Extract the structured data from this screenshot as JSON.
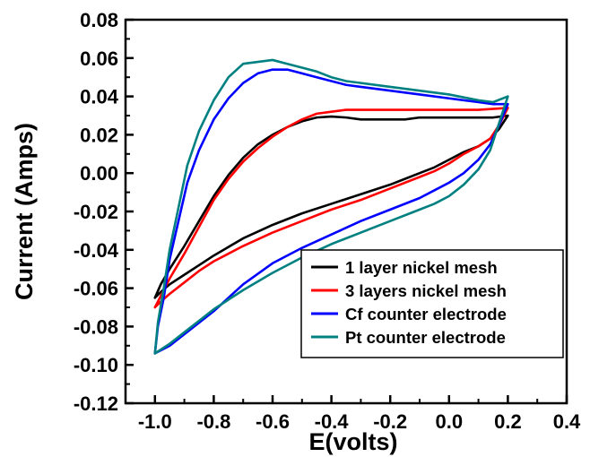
{
  "chart_data": {
    "type": "line",
    "xlabel": "E(volts)",
    "ylabel": "Current (Amps)",
    "xlim": [
      -1.1,
      0.4
    ],
    "ylim": [
      -0.12,
      0.08
    ],
    "x_ticks": [
      "-1.0",
      "-0.8",
      "-0.6",
      "-0.4",
      "-0.2",
      "0.0",
      "0.2",
      "0.4"
    ],
    "y_ticks": [
      "0.08",
      "0.06",
      "0.04",
      "0.02",
      "0.00",
      "-0.02",
      "-0.04",
      "-0.06",
      "-0.08",
      "-0.10",
      "-0.12"
    ],
    "grid": false,
    "legend_position": "bottom-right",
    "series": [
      {
        "name": "1 layer nickel mesh",
        "color": "#000000",
        "x": [
          -1.0,
          -0.98,
          -0.95,
          -0.9,
          -0.85,
          -0.8,
          -0.75,
          -0.7,
          -0.65,
          -0.6,
          -0.55,
          -0.5,
          -0.45,
          -0.4,
          -0.35,
          -0.3,
          -0.25,
          -0.2,
          -0.15,
          -0.1,
          -0.05,
          0.0,
          0.05,
          0.1,
          0.15,
          0.2,
          0.2,
          0.17,
          0.14,
          0.1,
          0.05,
          0.0,
          -0.05,
          -0.1,
          -0.15,
          -0.2,
          -0.3,
          -0.4,
          -0.5,
          -0.6,
          -0.7,
          -0.8,
          -0.85,
          -0.9,
          -0.95,
          -0.98,
          -1.0
        ],
        "y": [
          -0.065,
          -0.058,
          -0.05,
          -0.038,
          -0.025,
          -0.012,
          -0.001,
          0.008,
          0.015,
          0.02,
          0.024,
          0.027,
          0.029,
          0.0295,
          0.029,
          0.028,
          0.028,
          0.028,
          0.028,
          0.029,
          0.029,
          0.029,
          0.029,
          0.029,
          0.029,
          0.03,
          0.03,
          0.023,
          0.018,
          0.014,
          0.011,
          0.007,
          0.003,
          0.0,
          -0.003,
          -0.006,
          -0.011,
          -0.016,
          -0.021,
          -0.027,
          -0.034,
          -0.043,
          -0.048,
          -0.053,
          -0.058,
          -0.062,
          -0.065
        ]
      },
      {
        "name": "3 layers nickel mesh",
        "color": "#ff0000",
        "x": [
          -1.0,
          -0.98,
          -0.95,
          -0.9,
          -0.85,
          -0.8,
          -0.75,
          -0.7,
          -0.65,
          -0.6,
          -0.55,
          -0.5,
          -0.45,
          -0.4,
          -0.35,
          -0.3,
          -0.2,
          -0.1,
          0.0,
          0.1,
          0.2,
          0.2,
          0.17,
          0.14,
          0.1,
          0.05,
          0.0,
          -0.05,
          -0.1,
          -0.2,
          -0.3,
          -0.4,
          -0.5,
          -0.6,
          -0.7,
          -0.8,
          -0.85,
          -0.9,
          -0.95,
          -0.98,
          -1.0
        ],
        "y": [
          -0.07,
          -0.064,
          -0.055,
          -0.042,
          -0.028,
          -0.014,
          -0.003,
          0.006,
          0.013,
          0.019,
          0.024,
          0.028,
          0.031,
          0.032,
          0.033,
          0.033,
          0.033,
          0.033,
          0.033,
          0.033,
          0.034,
          0.034,
          0.025,
          0.018,
          0.014,
          0.01,
          0.005,
          0.001,
          -0.002,
          -0.008,
          -0.014,
          -0.019,
          -0.025,
          -0.031,
          -0.038,
          -0.046,
          -0.051,
          -0.057,
          -0.063,
          -0.067,
          -0.07
        ]
      },
      {
        "name": "Cf counter electrode",
        "color": "#0000ff",
        "x": [
          -1.0,
          -0.99,
          -0.97,
          -0.95,
          -0.92,
          -0.89,
          -0.85,
          -0.8,
          -0.75,
          -0.7,
          -0.65,
          -0.6,
          -0.55,
          -0.5,
          -0.45,
          -0.4,
          -0.35,
          -0.3,
          -0.2,
          -0.1,
          0.0,
          0.1,
          0.15,
          0.2,
          0.2,
          0.17,
          0.14,
          0.1,
          0.05,
          0.0,
          -0.05,
          -0.1,
          -0.2,
          -0.3,
          -0.4,
          -0.5,
          -0.6,
          -0.7,
          -0.8,
          -0.85,
          -0.9,
          -0.95,
          -1.0
        ],
        "y": [
          -0.094,
          -0.08,
          -0.065,
          -0.045,
          -0.025,
          -0.005,
          0.012,
          0.028,
          0.039,
          0.047,
          0.052,
          0.054,
          0.054,
          0.052,
          0.05,
          0.048,
          0.046,
          0.045,
          0.043,
          0.041,
          0.039,
          0.037,
          0.036,
          0.036,
          0.036,
          0.025,
          0.015,
          0.007,
          0.0,
          -0.005,
          -0.009,
          -0.013,
          -0.019,
          -0.025,
          -0.032,
          -0.039,
          -0.047,
          -0.058,
          -0.072,
          -0.078,
          -0.084,
          -0.09,
          -0.094
        ]
      },
      {
        "name": "Pt counter electrode",
        "color": "#008080",
        "x": [
          -1.0,
          -0.99,
          -0.97,
          -0.95,
          -0.92,
          -0.89,
          -0.85,
          -0.8,
          -0.75,
          -0.7,
          -0.65,
          -0.6,
          -0.55,
          -0.5,
          -0.45,
          -0.4,
          -0.35,
          -0.3,
          -0.2,
          -0.1,
          0.0,
          0.1,
          0.15,
          0.2,
          0.2,
          0.17,
          0.14,
          0.1,
          0.05,
          0.0,
          -0.05,
          -0.1,
          -0.2,
          -0.3,
          -0.4,
          -0.5,
          -0.6,
          -0.7,
          -0.8,
          -0.85,
          -0.9,
          -0.95,
          -1.0
        ],
        "y": [
          -0.094,
          -0.078,
          -0.06,
          -0.04,
          -0.018,
          0.004,
          0.022,
          0.038,
          0.05,
          0.057,
          0.058,
          0.059,
          0.057,
          0.055,
          0.053,
          0.05,
          0.048,
          0.047,
          0.045,
          0.043,
          0.041,
          0.038,
          0.037,
          0.04,
          0.04,
          0.026,
          0.012,
          0.002,
          -0.006,
          -0.012,
          -0.016,
          -0.019,
          -0.025,
          -0.031,
          -0.037,
          -0.044,
          -0.052,
          -0.061,
          -0.071,
          -0.077,
          -0.083,
          -0.089,
          -0.094
        ]
      }
    ]
  }
}
